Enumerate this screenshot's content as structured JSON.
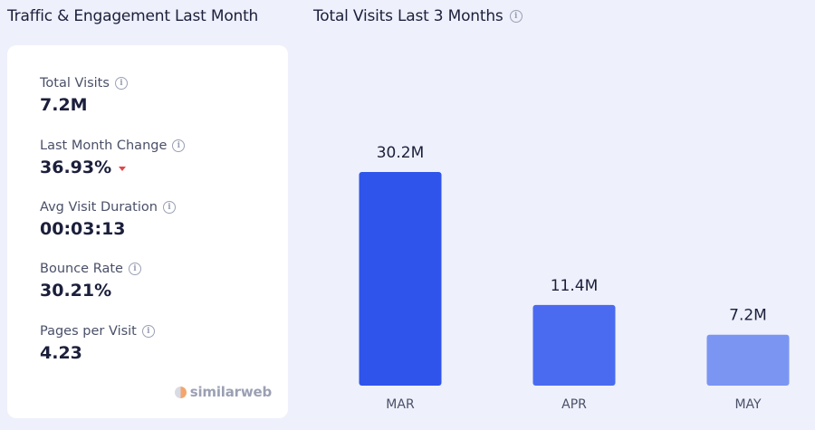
{
  "left_panel": {
    "title": "Traffic & Engagement Last Month",
    "metrics": [
      {
        "label": "Total Visits",
        "value": "7.2M"
      },
      {
        "label": "Last Month Change",
        "value": "36.93%",
        "trend": "down"
      },
      {
        "label": "Avg Visit Duration",
        "value": "00:03:13"
      },
      {
        "label": "Bounce Rate",
        "value": "30.21%"
      },
      {
        "label": "Pages per Visit",
        "value": "4.23"
      }
    ],
    "brand": "similarweb"
  },
  "icons": {
    "info": "info-icon",
    "trend_down": "caret-down-icon",
    "brand": "similarweb-logo-icon"
  },
  "colors": {
    "bar_mar": "#2f54eb",
    "bar_apr": "#4a6bf0",
    "bar_may": "#7b95f3",
    "trend_down": "#e0464e"
  },
  "chart_data": {
    "type": "bar",
    "title": "Total Visits Last 3 Months",
    "categories": [
      "MAR",
      "APR",
      "MAY"
    ],
    "values": [
      30.2,
      11.4,
      7.2
    ],
    "value_labels": [
      "30.2M",
      "11.4M",
      "7.2M"
    ],
    "unit": "M",
    "ylim": [
      0,
      30.2
    ],
    "grid": false
  }
}
